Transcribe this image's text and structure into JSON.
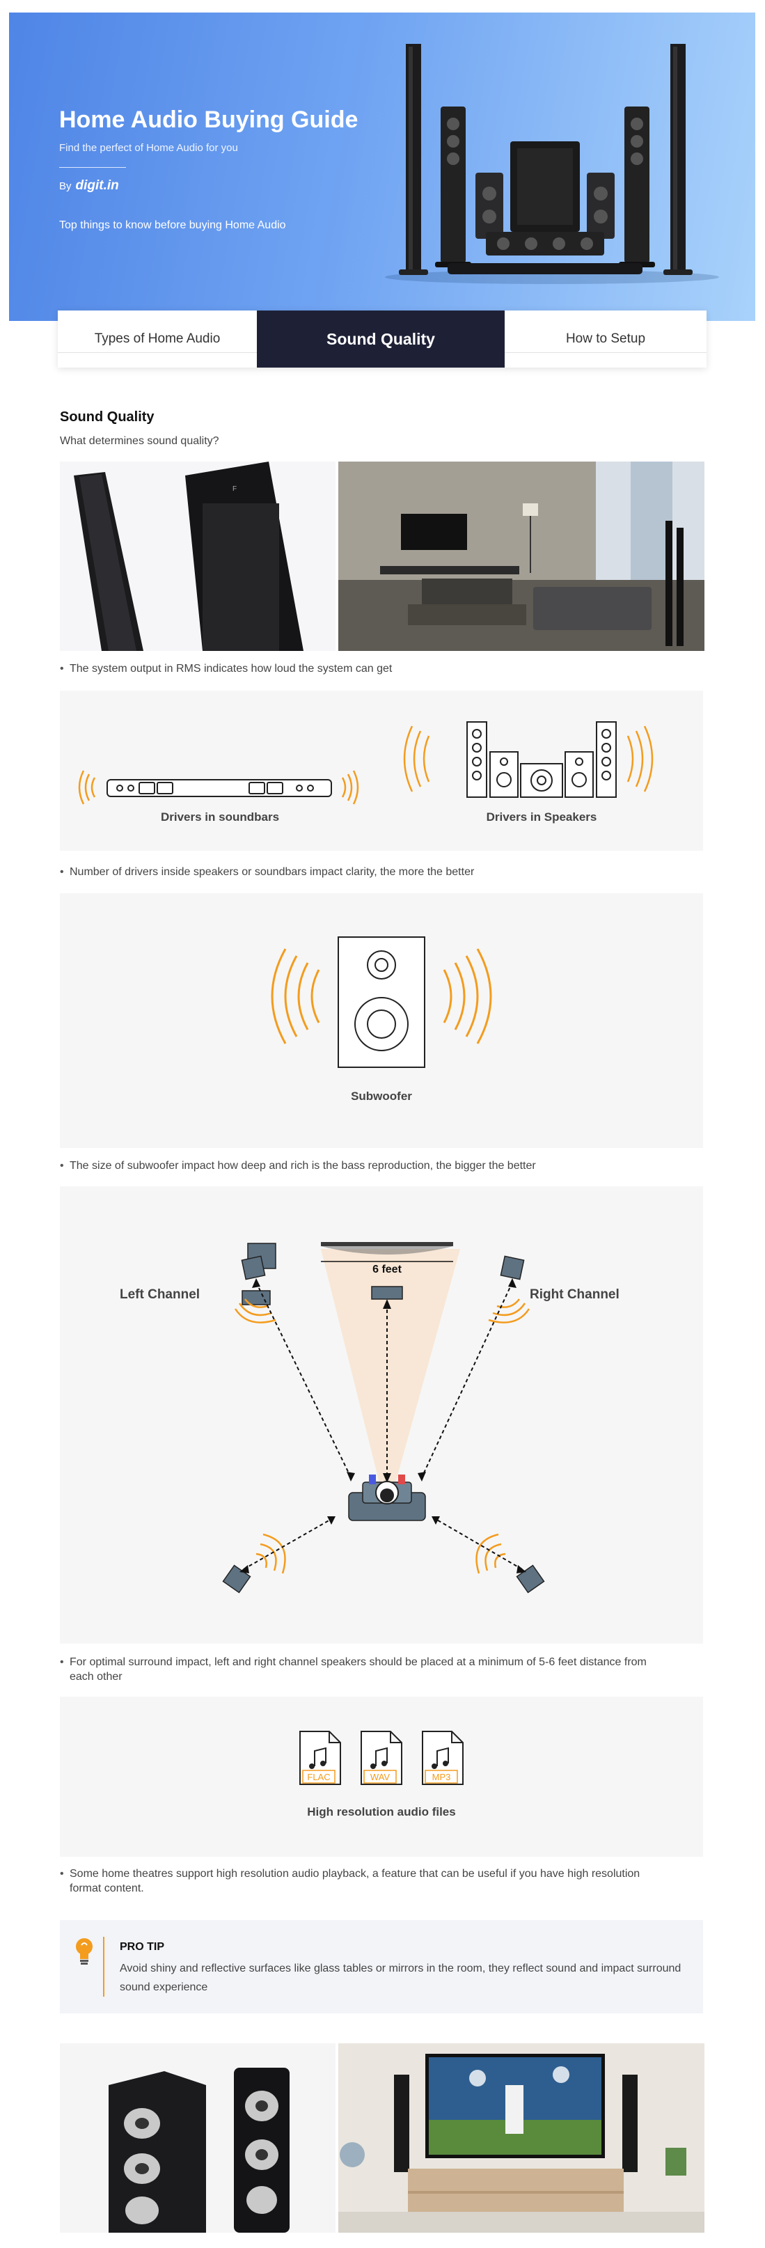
{
  "hero": {
    "title": "Home Audio Buying Guide",
    "subtitle": "Find the perfect of Home Audio for you",
    "by_label": "By",
    "brand": "digit.in",
    "top_things": "Top things to know before buying Home Audio"
  },
  "tabs": [
    {
      "label": "Types of Home Audio",
      "active": false
    },
    {
      "label": "Sound Quality",
      "active": true
    },
    {
      "label": "How to Setup",
      "active": false
    }
  ],
  "section": {
    "title": "Sound Quality",
    "subtitle": "What determines sound quality?"
  },
  "bullets": [
    "The system output in RMS indicates how loud the system can get",
    "Number of drivers inside speakers or soundbars impact clarity, the more the better",
    "The size of subwoofer impact how deep and rich is the bass reproduction, the bigger the better",
    "For optimal surround impact, left and right channel speakers should be placed at a minimum of 5-6 feet distance from each other",
    "Some home theatres support high resolution audio playback, a feature that can be useful if you have high resolution format content."
  ],
  "drivers": {
    "soundbars_caption": "Drivers in soundbars",
    "speakers_caption": "Drivers in Speakers"
  },
  "subwoofer": {
    "caption": "Subwoofer"
  },
  "placement": {
    "left_label": "Left Channel",
    "right_label": "Right Channel",
    "distance_label": "6 feet"
  },
  "hires": {
    "caption": "High resolution audio files",
    "formats": [
      "FLAC",
      "WAV",
      "MP3"
    ]
  },
  "protip": {
    "title": "PRO TIP",
    "text": "Avoid shiny and reflective surfaces like glass tables or mirrors in the room, they reflect sound and impact surround sound experience"
  },
  "colors": {
    "accent": "#f39c1e",
    "tab_active_bg": "#1e2136",
    "hero_start": "#4f85e6",
    "hero_end": "#a9d2fb",
    "panel_bg": "#f6f6f6",
    "speaker_slate": "#5e7282"
  }
}
